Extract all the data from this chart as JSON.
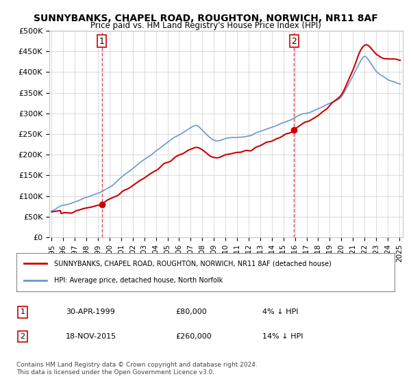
{
  "title": "SUNNYBANKS, CHAPEL ROAD, ROUGHTON, NORWICH, NR11 8AF",
  "subtitle": "Price paid vs. HM Land Registry's House Price Index (HPI)",
  "ylabel": "",
  "xlabel": "",
  "ylim": [
    0,
    500000
  ],
  "yticks": [
    0,
    50000,
    100000,
    150000,
    200000,
    250000,
    300000,
    350000,
    400000,
    450000,
    500000
  ],
  "ytick_labels": [
    "£0",
    "£50K",
    "£100K",
    "£150K",
    "£200K",
    "£250K",
    "£300K",
    "£350K",
    "£400K",
    "£450K",
    "£500K"
  ],
  "hpi_color": "#6699cc",
  "price_color": "#cc0000",
  "marker1_date_idx": 4.33,
  "marker2_date_idx": 20.88,
  "sale1_date": "30-APR-1999",
  "sale1_price": "£80,000",
  "sale1_note": "4% ↓ HPI",
  "sale2_date": "18-NOV-2015",
  "sale2_price": "£260,000",
  "sale2_note": "14% ↓ HPI",
  "legend_line1": "SUNNYBANKS, CHAPEL ROAD, ROUGHTON, NORWICH, NR11 8AF (detached house)",
  "legend_line2": "HPI: Average price, detached house, North Norfolk",
  "footnote": "Contains HM Land Registry data © Crown copyright and database right 2024.\nThis data is licensed under the Open Government Licence v3.0.",
  "background_color": "#ffffff",
  "grid_color": "#cccccc"
}
